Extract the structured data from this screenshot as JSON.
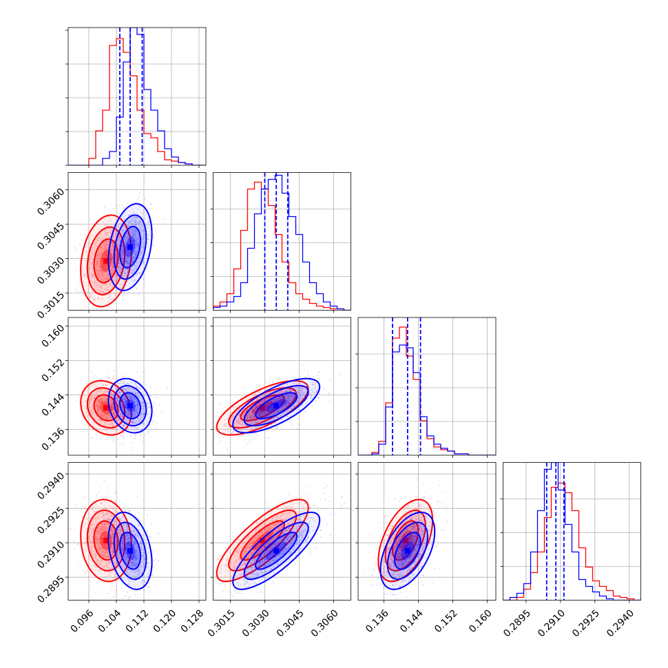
{
  "chart_data": {
    "type": "corner",
    "grid": true,
    "params": [
      {
        "range": [
          0.09,
          0.13
        ],
        "ticks": [
          "0.096",
          "0.104",
          "0.112",
          "0.120",
          "0.128"
        ]
      },
      {
        "range": [
          0.30075,
          0.30675
        ],
        "ticks": [
          "0.3015",
          "0.3030",
          "0.3045",
          "0.3060"
        ]
      },
      {
        "range": [
          0.13,
          0.162
        ],
        "ticks": [
          "0.136",
          "0.144",
          "0.152",
          "0.160"
        ]
      },
      {
        "range": [
          0.2885,
          0.2945
        ],
        "ticks": [
          "0.2895",
          "0.2910",
          "0.2925",
          "0.2940"
        ]
      }
    ],
    "series": [
      {
        "color": "#ff0000",
        "mean": [
          0.101,
          0.3029,
          0.141,
          0.2911
        ],
        "sd": [
          0.0035,
          0.00095,
          0.003,
          0.00085
        ],
        "corr": [
          [
            1,
            0.2,
            -0.2,
            -0.1
          ],
          [
            0.2,
            1,
            0.7,
            0.8
          ],
          [
            -0.2,
            0.7,
            1,
            0.5
          ],
          [
            -0.1,
            0.8,
            0.5,
            1
          ]
        ]
      },
      {
        "color": "#0000ff",
        "mean": [
          0.108,
          0.3035,
          0.1415,
          0.29065
        ],
        "sd": [
          0.003,
          0.0009,
          0.003,
          0.0008
        ],
        "corr": [
          [
            1,
            0.3,
            -0.2,
            -0.3
          ],
          [
            0.3,
            1,
            0.7,
            0.8
          ],
          [
            -0.2,
            0.7,
            1,
            0.5
          ],
          [
            -0.3,
            0.8,
            0.5,
            1
          ]
        ]
      }
    ],
    "quantile_lines": {
      "color": "#0000ff",
      "style": "dashed",
      "values": [
        [
          0.105,
          0.108,
          0.1115
        ],
        [
          0.303,
          0.3035,
          0.304
        ],
        [
          0.138,
          0.1415,
          0.1445
        ],
        [
          0.2904,
          0.2908,
          0.29115
        ]
      ]
    },
    "histograms": [
      {
        "bins": 20,
        "red": [
          0,
          0,
          0,
          0.05,
          0.25,
          0.4,
          0.87,
          0.92,
          0.82,
          0.65,
          0.4,
          0.23,
          0.2,
          0.1,
          0.04,
          0.03,
          0.02,
          0.01,
          0,
          0
        ],
        "blue": [
          0,
          0,
          0,
          0,
          0,
          0.05,
          0.1,
          0.35,
          0.75,
          1.0,
          0.95,
          0.55,
          0.4,
          0.25,
          0.12,
          0.06,
          0.02,
          0.01,
          0,
          0
        ]
      },
      {
        "bins": 20,
        "red": [
          0.03,
          0.06,
          0.12,
          0.3,
          0.58,
          0.88,
          0.93,
          0.88,
          0.76,
          0.55,
          0.35,
          0.2,
          0.12,
          0.08,
          0.05,
          0.03,
          0.02,
          0.01,
          0.01,
          0
        ],
        "blue": [
          0.02,
          0.03,
          0.06,
          0.1,
          0.2,
          0.45,
          0.7,
          0.88,
          0.95,
          0.98,
          0.85,
          0.68,
          0.55,
          0.35,
          0.2,
          0.12,
          0.06,
          0.03,
          0.01,
          0
        ]
      },
      {
        "bins": 20,
        "red": [
          0,
          0,
          0.02,
          0.1,
          0.38,
          0.85,
          0.93,
          0.72,
          0.55,
          0.25,
          0.12,
          0.06,
          0.04,
          0.03,
          0.01,
          0.01,
          0,
          0,
          0,
          0
        ],
        "blue": [
          0,
          0,
          0.01,
          0.08,
          0.35,
          0.75,
          0.8,
          0.78,
          0.6,
          0.28,
          0.14,
          0.08,
          0.05,
          0.03,
          0.01,
          0.01,
          0,
          0,
          0,
          0
        ]
      },
      {
        "bins": 20,
        "red": [
          0,
          0,
          0.02,
          0.08,
          0.2,
          0.35,
          0.6,
          0.82,
          0.85,
          0.78,
          0.65,
          0.38,
          0.24,
          0.14,
          0.1,
          0.07,
          0.03,
          0.02,
          0.01,
          0
        ],
        "blue": [
          0,
          0.02,
          0.05,
          0.12,
          0.35,
          0.65,
          0.95,
          1.0,
          0.8,
          0.55,
          0.35,
          0.15,
          0.1,
          0.06,
          0.03,
          0.01,
          0,
          0,
          0,
          0
        ]
      }
    ]
  }
}
